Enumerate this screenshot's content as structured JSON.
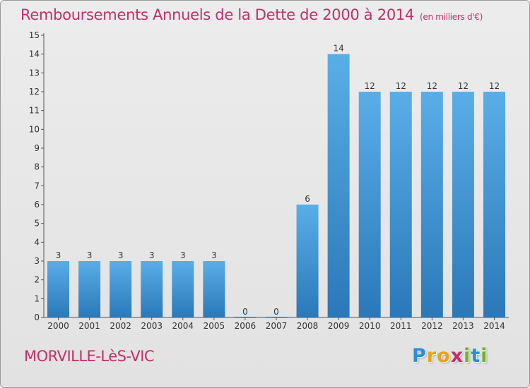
{
  "title": "Remboursements Annuels de la Dette de 2000 à 2014",
  "unit": "(en milliers d'€)",
  "city": "MORVILLE-LèS-VIC",
  "logo": {
    "letters": [
      "P",
      "r",
      "o",
      "x",
      "i",
      "t",
      "i"
    ],
    "colors": [
      "#2a8fd4",
      "#e8a317",
      "#e8a317",
      "#c0306a",
      "#6ab42d",
      "#2a8fd4",
      "#6ab42d"
    ]
  },
  "colors": {
    "bar_top": "#5aaee8",
    "bar_bottom": "#2a78b8",
    "accent": "#c0306a"
  },
  "chart_data": {
    "type": "bar",
    "categories": [
      "2000",
      "2001",
      "2002",
      "2003",
      "2004",
      "2005",
      "2006",
      "2007",
      "2008",
      "2009",
      "2010",
      "2011",
      "2012",
      "2013",
      "2014"
    ],
    "values": [
      3,
      3,
      3,
      3,
      3,
      3,
      0,
      0,
      6,
      14,
      12,
      12,
      12,
      12,
      12
    ],
    "data_labels": [
      "3",
      "3",
      "3",
      "3",
      "3",
      "3",
      "0",
      "0",
      "6",
      "14",
      "12",
      "12",
      "12",
      "12",
      "12"
    ],
    "y_ticks": [
      "0",
      "1",
      "2",
      "3",
      "4",
      "5",
      "6",
      "7",
      "8",
      "9",
      "10",
      "11",
      "12",
      "13",
      "14",
      "15"
    ],
    "ylim": [
      0,
      15
    ],
    "grid": false
  }
}
